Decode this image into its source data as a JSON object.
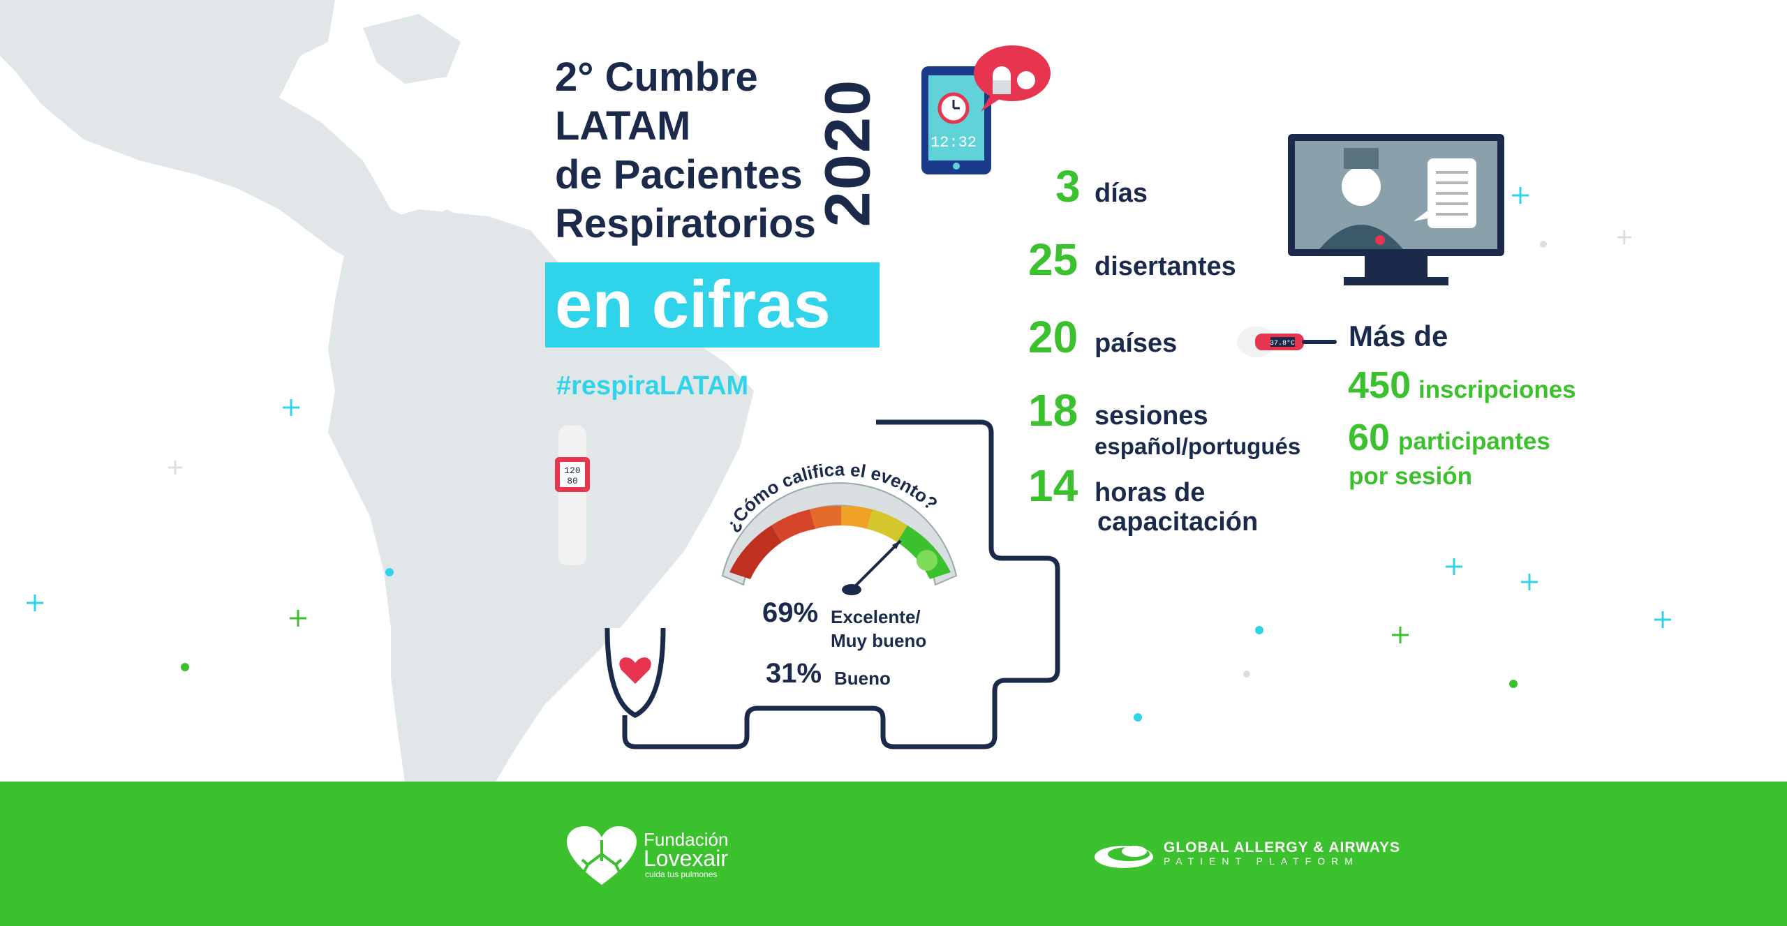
{
  "header": {
    "title_lines": [
      "2° Cumbre",
      "LATAM",
      "de Pacientes",
      "Respiratorios"
    ],
    "year": "2020",
    "subtitle": "en cifras",
    "hashtag": "#respiraLATAM"
  },
  "device": {
    "phone_time": "12:32",
    "watch_reading_top": "120",
    "watch_reading_bottom": "80",
    "thermometer_reading": "37.8°C"
  },
  "stats": [
    {
      "number": "3",
      "label": "días",
      "sub": ""
    },
    {
      "number": "25",
      "label": "disertantes",
      "sub": ""
    },
    {
      "number": "20",
      "label": "países",
      "sub": ""
    },
    {
      "number": "18",
      "label": "sesiones",
      "sub": "español/portugués"
    },
    {
      "number": "14",
      "label": "horas de",
      "sub": "capacitación"
    }
  ],
  "registration": {
    "prefix": "Más de",
    "count": "450",
    "count_label": "inscripciones",
    "participants": "60",
    "participants_label": "participantes",
    "participants_sub": "por sesión"
  },
  "rating": {
    "question": "¿Cómo califica el evento?",
    "results": [
      {
        "percent": "69%",
        "label_line1": "Excelente/",
        "label_line2": "Muy bueno"
      },
      {
        "percent": "31%",
        "label_line1": "Bueno",
        "label_line2": ""
      }
    ]
  },
  "footer": {
    "left_logo": {
      "line1": "Fundación",
      "line2": "Lovexair",
      "tagline": "cuida tus pulmones"
    },
    "right_logo": {
      "line1": "GLOBAL ALLERGY & AIRWAYS",
      "line2": "PATIENT PLATFORM"
    }
  },
  "colors": {
    "navy": "#1b2a4a",
    "green": "#3cc12e",
    "cyan": "#2fd3ea",
    "map_gray": "#e1e7e8"
  }
}
